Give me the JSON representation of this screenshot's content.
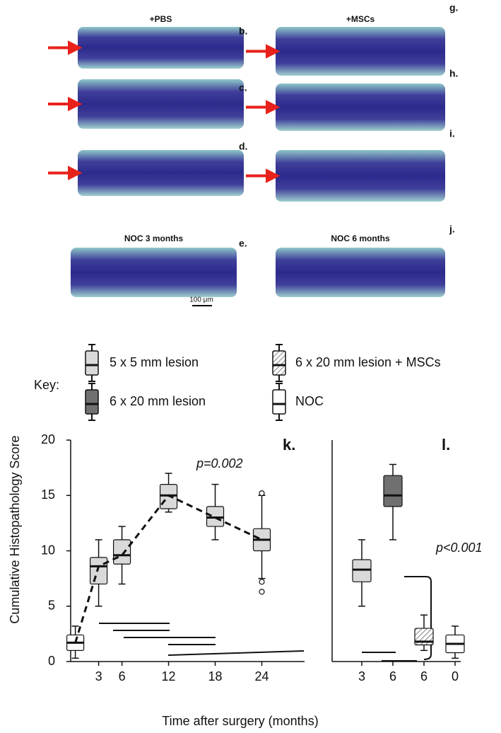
{
  "panels": [
    {
      "label": "b.",
      "title": "+PBS",
      "arrow": true
    },
    {
      "label": "c.",
      "arrow": true
    },
    {
      "label": "d.",
      "arrow": true
    },
    {
      "label": "e.",
      "title": "NOC 3 months",
      "scale": "100 μm",
      "arrow": false
    },
    {
      "label": "g.",
      "title": "+MSCs",
      "arrow": true
    },
    {
      "label": "h.",
      "arrow": true
    },
    {
      "label": "i.",
      "arrow": true
    },
    {
      "label": "j.",
      "title": "NOC 6 months",
      "arrow": false
    }
  ],
  "key": {
    "title": "Key:",
    "entries": [
      {
        "name": "5 x 5 mm lesion",
        "fill": "#d9d9d9",
        "hatch": false
      },
      {
        "name": "6 x 20 mm lesion + MSCs",
        "fill": "#ffffff",
        "hatch": true
      },
      {
        "name": "6 x 20 mm lesion",
        "fill": "#707070",
        "hatch": false
      },
      {
        "name": "NOC",
        "fill": "#ffffff",
        "hatch": false
      }
    ]
  },
  "chart_data": [
    {
      "type": "box",
      "panel_label": "k.",
      "ylabel": "Cumulative Histopathology Score",
      "xlabel": "Time after surgery (months)",
      "annotation": "p=0.002",
      "ylim": [
        0,
        20
      ],
      "yticks": [
        0,
        5,
        10,
        15,
        20
      ],
      "xlim": [
        -0.6,
        29.5
      ],
      "xticks": [
        3,
        6,
        12,
        18,
        24
      ],
      "trend_line": "dashed",
      "x": [
        0,
        3,
        6,
        12,
        18,
        24
      ],
      "boxes": [
        {
          "min": 0.3,
          "q1": 1.0,
          "median": 1.7,
          "q3": 2.4,
          "max": 3.2,
          "fill": "#ffffff",
          "outliers": []
        },
        {
          "min": 5,
          "q1": 7,
          "median": 8.6,
          "q3": 9.4,
          "max": 11,
          "fill": "#d9d9d9",
          "outliers": []
        },
        {
          "min": 7,
          "q1": 8.8,
          "median": 9.6,
          "q3": 11,
          "max": 12.2,
          "fill": "#d9d9d9",
          "outliers": []
        },
        {
          "min": 13.5,
          "q1": 13.8,
          "median": 15,
          "q3": 16,
          "max": 17,
          "fill": "#d9d9d9",
          "outliers": []
        },
        {
          "min": 11,
          "q1": 12.2,
          "median": 13,
          "q3": 14,
          "max": 16,
          "fill": "#d9d9d9",
          "outliers": []
        },
        {
          "min": 7.5,
          "q1": 10,
          "median": 11,
          "q3": 12,
          "max": 15,
          "fill": "#d9d9d9",
          "outliers": [
            15.2,
            7.2,
            6.3
          ]
        }
      ]
    },
    {
      "type": "box",
      "panel_label": "l.",
      "annotation": "p<0.001",
      "ylim": [
        0,
        20
      ],
      "categories": [
        "3",
        "6",
        "6",
        "0"
      ],
      "boxes": [
        {
          "min": 5,
          "q1": 7.2,
          "median": 8.3,
          "q3": 9.2,
          "max": 11,
          "fill": "#d9d9d9",
          "hatch": false
        },
        {
          "min": 11,
          "q1": 14,
          "median": 15,
          "q3": 16.8,
          "max": 17.8,
          "fill": "#707070",
          "hatch": false
        },
        {
          "min": 1,
          "q1": 1.5,
          "median": 1.8,
          "q3": 3,
          "max": 4.2,
          "fill": "#ffffff",
          "hatch": true
        },
        {
          "min": 0.3,
          "q1": 0.8,
          "median": 1.6,
          "q3": 2.4,
          "max": 3.2,
          "fill": "#ffffff",
          "hatch": false
        }
      ]
    }
  ]
}
